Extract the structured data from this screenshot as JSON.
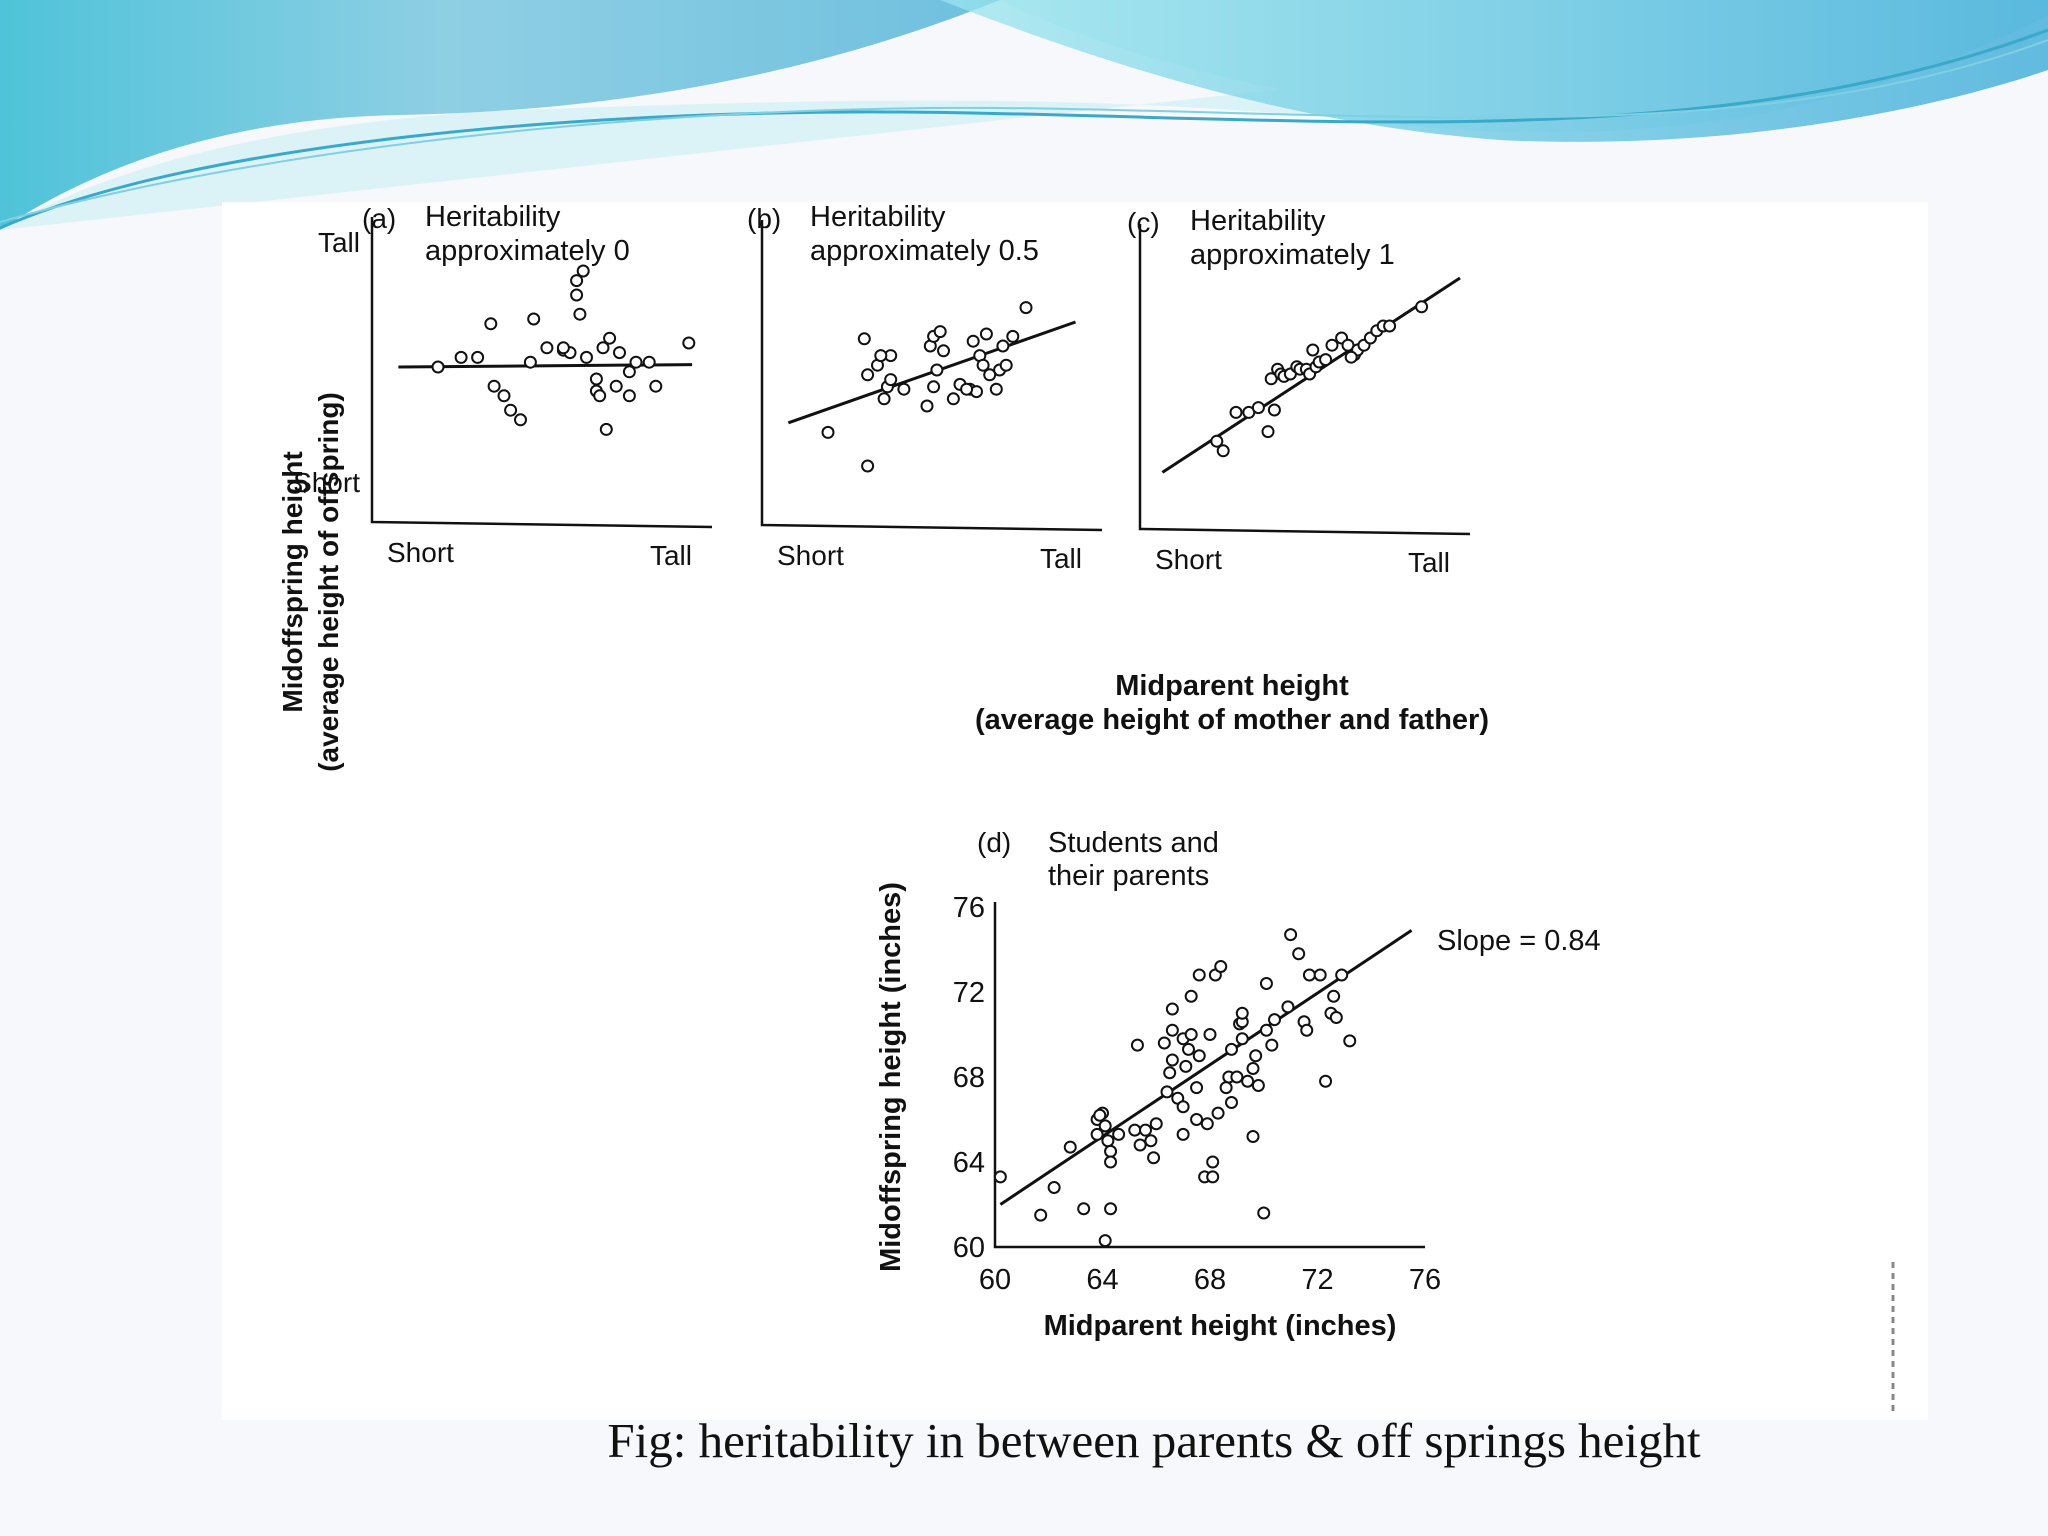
{
  "caption": "Fig: heritability in between parents & off springs  height",
  "shared_labels": {
    "y_axis_title_line1": "Midoffspring height",
    "y_axis_title_line2": "(average height of offspring)",
    "x_axis_title_line1": "Midparent height",
    "x_axis_title_line2": "(average height of mother and father)"
  },
  "chart_data": [
    {
      "type": "scatter",
      "panel": "(a)",
      "title": [
        "Heritability",
        "approximately 0"
      ],
      "x_ticks": [
        "Short",
        "Tall"
      ],
      "y_ticks": [
        "Tall",
        "Short"
      ],
      "xlim": [
        0,
        100
      ],
      "ylim": [
        0,
        100
      ],
      "points": [
        [
          20,
          50
        ],
        [
          27,
          54
        ],
        [
          32,
          54
        ],
        [
          37,
          42
        ],
        [
          40,
          38
        ],
        [
          42,
          32
        ],
        [
          45,
          28
        ],
        [
          36,
          68
        ],
        [
          48,
          52
        ],
        [
          49,
          70
        ],
        [
          53,
          58
        ],
        [
          58,
          57
        ],
        [
          60,
          56
        ],
        [
          62,
          86
        ],
        [
          64,
          90
        ],
        [
          63,
          72
        ],
        [
          62,
          80
        ],
        [
          65,
          54
        ],
        [
          58,
          58
        ],
        [
          70,
          58
        ],
        [
          68,
          40
        ],
        [
          68,
          45
        ],
        [
          69,
          38
        ],
        [
          71,
          24
        ],
        [
          72,
          62
        ],
        [
          75,
          56
        ],
        [
          78,
          48
        ],
        [
          80,
          52
        ],
        [
          84,
          52
        ],
        [
          78,
          38
        ],
        [
          86,
          42
        ],
        [
          96,
          60
        ],
        [
          74,
          42
        ]
      ],
      "fit_line": [
        [
          8,
          50
        ],
        [
          97,
          51
        ]
      ],
      "fit_slope_approx": 0
    },
    {
      "type": "scatter",
      "panel": "(b)",
      "title": [
        "Heritability",
        "approximately 0.5"
      ],
      "x_ticks": [
        "Short",
        "Tall"
      ],
      "y_ticks": [],
      "xlim": [
        0,
        100
      ],
      "ylim": [
        0,
        100
      ],
      "points": [
        [
          20,
          24
        ],
        [
          32,
          10
        ],
        [
          31,
          63
        ],
        [
          32,
          48
        ],
        [
          35,
          52
        ],
        [
          37,
          38
        ],
        [
          38,
          43
        ],
        [
          39,
          46
        ],
        [
          39,
          56
        ],
        [
          36,
          56
        ],
        [
          43,
          42
        ],
        [
          50,
          35
        ],
        [
          51,
          60
        ],
        [
          52,
          43
        ],
        [
          53,
          50
        ],
        [
          52,
          64
        ],
        [
          54,
          66
        ],
        [
          55,
          58
        ],
        [
          58,
          38
        ],
        [
          60,
          44
        ],
        [
          63,
          42
        ],
        [
          64,
          62
        ],
        [
          66,
          56
        ],
        [
          67,
          52
        ],
        [
          68,
          65
        ],
        [
          69,
          48
        ],
        [
          71,
          42
        ],
        [
          72,
          50
        ],
        [
          73,
          60
        ],
        [
          74,
          52
        ],
        [
          76,
          64
        ],
        [
          80,
          76
        ],
        [
          65,
          41
        ],
        [
          62,
          42
        ]
      ],
      "fit_line": [
        [
          8,
          28
        ],
        [
          95,
          70
        ]
      ],
      "fit_slope_approx": 0.5
    },
    {
      "type": "scatter",
      "panel": "(c)",
      "title": [
        "Heritability",
        "approximately 1"
      ],
      "x_ticks": [
        "Short",
        "Tall"
      ],
      "y_ticks": [],
      "xlim": [
        0,
        100
      ],
      "ylim": [
        0,
        100
      ],
      "points": [
        [
          24,
          22
        ],
        [
          26,
          18
        ],
        [
          30,
          34
        ],
        [
          34,
          34
        ],
        [
          37,
          36
        ],
        [
          40,
          26
        ],
        [
          42,
          35
        ],
        [
          41,
          48
        ],
        [
          43,
          52
        ],
        [
          44,
          50
        ],
        [
          45,
          49
        ],
        [
          47,
          50
        ],
        [
          49,
          53
        ],
        [
          50,
          52
        ],
        [
          52,
          52
        ],
        [
          53,
          50
        ],
        [
          55,
          53
        ],
        [
          56,
          55
        ],
        [
          58,
          56
        ],
        [
          60,
          62
        ],
        [
          63,
          65
        ],
        [
          65,
          62
        ],
        [
          67,
          58
        ],
        [
          68,
          60
        ],
        [
          70,
          62
        ],
        [
          72,
          65
        ],
        [
          74,
          68
        ],
        [
          76,
          70
        ],
        [
          78,
          70
        ],
        [
          88,
          78
        ],
        [
          54,
          60
        ],
        [
          66,
          57
        ]
      ],
      "fit_line": [
        [
          7,
          9
        ],
        [
          100,
          90
        ]
      ],
      "fit_slope_approx": 1
    },
    {
      "type": "scatter",
      "panel": "(d)",
      "title": [
        "Students and",
        "their parents"
      ],
      "xlabel": "Midparent height (inches)",
      "ylabel": "Midoffspring height (inches)",
      "xlim": [
        60,
        76
      ],
      "ylim": [
        60,
        76
      ],
      "x_ticks": [
        60,
        64,
        68,
        72,
        76
      ],
      "y_ticks": [
        60,
        64,
        68,
        72,
        76
      ],
      "annotation": "Slope = 0.84",
      "fit_line": [
        [
          60.2,
          62.0
        ],
        [
          75.5,
          74.9
        ]
      ],
      "points": [
        [
          60.2,
          63.3
        ],
        [
          61.7,
          61.5
        ],
        [
          62.2,
          62.8
        ],
        [
          62.8,
          64.7
        ],
        [
          63.3,
          61.8
        ],
        [
          63.8,
          65.3
        ],
        [
          63.8,
          66.0
        ],
        [
          64.0,
          66.3
        ],
        [
          64.1,
          60.3
        ],
        [
          64.1,
          65.7
        ],
        [
          64.2,
          65.0
        ],
        [
          64.3,
          64.5
        ],
        [
          64.3,
          64.0
        ],
        [
          64.3,
          61.8
        ],
        [
          64.6,
          65.3
        ],
        [
          65.2,
          65.5
        ],
        [
          65.3,
          69.5
        ],
        [
          65.4,
          64.8
        ],
        [
          65.6,
          65.5
        ],
        [
          65.8,
          65.0
        ],
        [
          65.9,
          64.2
        ],
        [
          66.0,
          65.8
        ],
        [
          66.4,
          67.3
        ],
        [
          66.5,
          68.2
        ],
        [
          66.6,
          68.8
        ],
        [
          66.6,
          70.2
        ],
        [
          66.6,
          71.2
        ],
        [
          66.8,
          67.0
        ],
        [
          67.0,
          69.8
        ],
        [
          67.0,
          65.3
        ],
        [
          67.0,
          66.6
        ],
        [
          67.1,
          68.5
        ],
        [
          67.2,
          69.3
        ],
        [
          67.3,
          70.0
        ],
        [
          67.3,
          71.8
        ],
        [
          67.5,
          67.5
        ],
        [
          67.5,
          66.0
        ],
        [
          67.6,
          69.0
        ],
        [
          67.6,
          72.8
        ],
        [
          67.8,
          63.3
        ],
        [
          67.9,
          65.8
        ],
        [
          68.0,
          70.0
        ],
        [
          68.1,
          64.0
        ],
        [
          68.1,
          63.3
        ],
        [
          68.2,
          72.8
        ],
        [
          68.3,
          66.3
        ],
        [
          68.4,
          73.2
        ],
        [
          68.6,
          67.5
        ],
        [
          68.7,
          68.0
        ],
        [
          68.8,
          69.3
        ],
        [
          68.8,
          66.8
        ],
        [
          69.0,
          68.0
        ],
        [
          69.1,
          70.5
        ],
        [
          69.2,
          69.8
        ],
        [
          69.2,
          70.6
        ],
        [
          69.4,
          67.8
        ],
        [
          69.6,
          68.4
        ],
        [
          69.6,
          65.2
        ],
        [
          69.7,
          69.0
        ],
        [
          69.8,
          67.6
        ],
        [
          70.0,
          61.6
        ],
        [
          70.1,
          72.4
        ],
        [
          70.1,
          70.2
        ],
        [
          70.3,
          69.5
        ],
        [
          70.4,
          70.7
        ],
        [
          70.9,
          71.3
        ],
        [
          71.0,
          74.7
        ],
        [
          71.3,
          73.8
        ],
        [
          71.5,
          70.6
        ],
        [
          71.6,
          70.2
        ],
        [
          71.7,
          72.8
        ],
        [
          72.1,
          72.8
        ],
        [
          72.3,
          67.8
        ],
        [
          72.5,
          71.0
        ],
        [
          72.6,
          71.8
        ],
        [
          72.7,
          70.8
        ],
        [
          72.9,
          72.8
        ],
        [
          73.2,
          69.7
        ],
        [
          63.9,
          66.2
        ],
        [
          66.3,
          69.6
        ],
        [
          69.2,
          71.0
        ]
      ]
    }
  ]
}
